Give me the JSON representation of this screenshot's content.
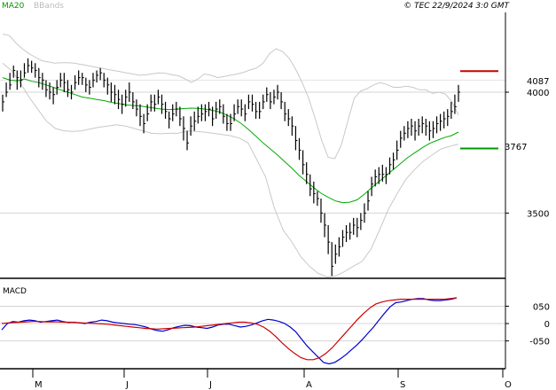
{
  "header": {
    "indicator_ma": "MA20",
    "indicator_bb": "BBands",
    "copyright": "© TEC 22/9/2024 3:0 GMT"
  },
  "colors": {
    "price": "#000000",
    "ma": "#00aa00",
    "bbands": "#c8c8c8",
    "macd": "#0000cc",
    "signal": "#cc0000",
    "resistance": "#cc0000",
    "support": "#009900",
    "grid": "#d4d4d4"
  },
  "chart_data": [
    {
      "type": "line",
      "name": "price-panel",
      "ylim": [
        3230,
        4330
      ],
      "yticks": [
        {
          "label": "4000",
          "value": 4000
        },
        {
          "label": "3500",
          "value": 3500
        }
      ],
      "xticks": [
        "M",
        "J",
        "J",
        "A",
        "S",
        "O"
      ],
      "levels": [
        {
          "label": "4087",
          "value": 4087,
          "role": "resistance"
        },
        {
          "label": "3767",
          "value": 3767,
          "role": "support"
        }
      ],
      "ohlc_close": [
        3935,
        4010,
        4050,
        4085,
        4040,
        4060,
        4100,
        4120,
        4105,
        4090,
        4060,
        4050,
        4020,
        4000,
        3980,
        4030,
        4060,
        4040,
        4010,
        4000,
        4040,
        4050,
        4060,
        4030,
        4020,
        4050,
        4070,
        4080,
        4060,
        4040,
        4000,
        3990,
        3970,
        3950,
        3980,
        4000,
        3960,
        3930,
        3900,
        3870,
        3930,
        3960,
        3950,
        3980,
        3950,
        3920,
        3890,
        3910,
        3930,
        3890,
        3850,
        3780,
        3860,
        3880,
        3900,
        3910,
        3920,
        3930,
        3890,
        3930,
        3940,
        3900,
        3870,
        3870,
        3910,
        3940,
        3930,
        3910,
        3960,
        3950,
        3920,
        3920,
        3960,
        3990,
        3960,
        3980,
        4000,
        3960,
        3910,
        3890,
        3860,
        3800,
        3760,
        3700,
        3660,
        3600,
        3580,
        3560,
        3500,
        3450,
        3380,
        3280,
        3330,
        3360,
        3400,
        3420,
        3420,
        3450,
        3440,
        3470,
        3500,
        3550,
        3620,
        3650,
        3660,
        3660,
        3660,
        3700,
        3720,
        3760,
        3810,
        3830,
        3850,
        3860,
        3840,
        3860,
        3870,
        3860,
        3840,
        3850,
        3870,
        3880,
        3890,
        3900,
        3920,
        3940,
        4000
      ],
      "ma20": [
        4060,
        4050,
        4047,
        4055,
        4045,
        4040,
        4030,
        4020,
        4010,
        4000,
        3990,
        3980,
        3975,
        3970,
        3965,
        3958,
        3953,
        3948,
        3945,
        3943,
        3938,
        3934,
        3930,
        3928,
        3930,
        3932,
        3934,
        3933,
        3930,
        3925,
        3918,
        3905,
        3890,
        3870,
        3845,
        3818,
        3790,
        3765,
        3740,
        3712,
        3685,
        3655,
        3630,
        3605,
        3582,
        3565,
        3550,
        3543,
        3545,
        3555,
        3578,
        3605,
        3630,
        3655,
        3680,
        3705,
        3730,
        3750,
        3770,
        3788,
        3800,
        3812,
        3820,
        3835
      ],
      "bb_upper": [
        4240,
        4235,
        4205,
        4180,
        4160,
        4145,
        4130,
        4125,
        4120,
        4122,
        4122,
        4120,
        4115,
        4110,
        4105,
        4100,
        4095,
        4090,
        4085,
        4080,
        4075,
        4070,
        4072,
        4076,
        4080,
        4078,
        4072,
        4068,
        4055,
        4040,
        4055,
        4075,
        4070,
        4060,
        4065,
        4070,
        4075,
        4082,
        4092,
        4100,
        4120,
        4160,
        4180,
        4168,
        4140,
        4095,
        4040,
        3975,
        3890,
        3800,
        3730,
        3725,
        3780,
        3880,
        3975,
        4005,
        4015,
        4030,
        4040,
        4032,
        4020,
        4020,
        4025,
        4020,
        4010,
        4010,
        3995,
        4000,
        3992,
        3960,
        3905
      ],
      "bb_lower": [
        4120,
        4090,
        4040,
        3980,
        3930,
        3880,
        3850,
        3840,
        3838,
        3840,
        3848,
        3855,
        3860,
        3865,
        3860,
        3850,
        3840,
        3830,
        3828,
        3830,
        3830,
        3840,
        3838,
        3835,
        3830,
        3825,
        3820,
        3810,
        3790,
        3720,
        3650,
        3520,
        3430,
        3380,
        3320,
        3280,
        3250,
        3236,
        3240,
        3258,
        3280,
        3300,
        3350,
        3430,
        3515,
        3580,
        3640,
        3680,
        3715,
        3740,
        3765,
        3776,
        3785
      ],
      "bars": [
        [
          3960,
          3990,
          3920
        ],
        [
          4000,
          4040,
          3980
        ],
        [
          4030,
          4080,
          4010
        ],
        [
          4090,
          4110,
          4060
        ],
        [
          4060,
          4090,
          4010
        ],
        [
          4050,
          4090,
          4020
        ],
        [
          4080,
          4120,
          4060
        ],
        [
          4110,
          4140,
          4080
        ],
        [
          4100,
          4130,
          4080
        ],
        [
          4090,
          4120,
          4060
        ],
        [
          4060,
          4100,
          4020
        ],
        [
          4050,
          4080,
          4010
        ],
        [
          4010,
          4050,
          3980
        ],
        [
          4000,
          4040,
          3970
        ],
        [
          3990,
          4020,
          3950
        ],
        [
          4020,
          4050,
          3990
        ],
        [
          4050,
          4080,
          4020
        ],
        [
          4040,
          4080,
          4000
        ],
        [
          4010,
          4050,
          3980
        ],
        [
          4000,
          4030,
          3970
        ],
        [
          4040,
          4070,
          4010
        ],
        [
          4060,
          4090,
          4030
        ],
        [
          4060,
          4080,
          4030
        ],
        [
          4030,
          4060,
          4000
        ],
        [
          4020,
          4050,
          3990
        ],
        [
          4050,
          4080,
          4020
        ],
        [
          4070,
          4090,
          4040
        ],
        [
          4080,
          4100,
          4050
        ],
        [
          4050,
          4080,
          4020
        ],
        [
          4030,
          4060,
          3990
        ],
        [
          4000,
          4040,
          3960
        ],
        [
          3990,
          4030,
          3950
        ],
        [
          3970,
          4010,
          3930
        ],
        [
          3950,
          3990,
          3910
        ],
        [
          3980,
          4010,
          3940
        ],
        [
          4000,
          4040,
          3960
        ],
        [
          3960,
          4000,
          3930
        ],
        [
          3930,
          3970,
          3900
        ],
        [
          3900,
          3950,
          3860
        ],
        [
          3870,
          3910,
          3830
        ],
        [
          3910,
          3950,
          3880
        ],
        [
          3960,
          3990,
          3920
        ],
        [
          3950,
          3990,
          3920
        ],
        [
          3980,
          4010,
          3950
        ],
        [
          3950,
          3990,
          3910
        ],
        [
          3920,
          3960,
          3890
        ],
        [
          3890,
          3920,
          3850
        ],
        [
          3910,
          3950,
          3880
        ],
        [
          3930,
          3960,
          3900
        ],
        [
          3890,
          3940,
          3860
        ],
        [
          3850,
          3900,
          3800
        ],
        [
          3790,
          3840,
          3760
        ],
        [
          3860,
          3900,
          3820
        ],
        [
          3880,
          3920,
          3840
        ],
        [
          3900,
          3940,
          3870
        ],
        [
          3910,
          3950,
          3880
        ],
        [
          3920,
          3950,
          3880
        ],
        [
          3930,
          3960,
          3900
        ],
        [
          3890,
          3940,
          3860
        ],
        [
          3930,
          3960,
          3890
        ],
        [
          3940,
          3970,
          3910
        ],
        [
          3900,
          3950,
          3870
        ],
        [
          3870,
          3910,
          3840
        ],
        [
          3870,
          3910,
          3840
        ],
        [
          3910,
          3950,
          3880
        ],
        [
          3940,
          3970,
          3910
        ],
        [
          3930,
          3970,
          3900
        ],
        [
          3910,
          3950,
          3880
        ],
        [
          3960,
          3990,
          3930
        ],
        [
          3950,
          3990,
          3920
        ],
        [
          3920,
          3960,
          3890
        ],
        [
          3920,
          3960,
          3890
        ],
        [
          3960,
          3990,
          3930
        ],
        [
          3990,
          4020,
          3960
        ],
        [
          3960,
          4000,
          3930
        ],
        [
          3980,
          4010,
          3950
        ],
        [
          4000,
          4030,
          3970
        ],
        [
          3960,
          4000,
          3930
        ],
        [
          3910,
          3960,
          3880
        ],
        [
          3890,
          3930,
          3860
        ],
        [
          3860,
          3900,
          3820
        ],
        [
          3800,
          3860,
          3760
        ],
        [
          3760,
          3810,
          3720
        ],
        [
          3700,
          3760,
          3660
        ],
        [
          3660,
          3710,
          3620
        ],
        [
          3600,
          3660,
          3570
        ],
        [
          3580,
          3630,
          3540
        ],
        [
          3560,
          3590,
          3530
        ],
        [
          3500,
          3560,
          3460
        ],
        [
          3450,
          3500,
          3400
        ],
        [
          3380,
          3450,
          3330
        ],
        [
          3280,
          3380,
          3240
        ],
        [
          3330,
          3370,
          3290
        ],
        [
          3360,
          3400,
          3320
        ],
        [
          3400,
          3430,
          3360
        ],
        [
          3420,
          3450,
          3380
        ],
        [
          3420,
          3460,
          3390
        ],
        [
          3450,
          3480,
          3410
        ],
        [
          3440,
          3480,
          3400
        ],
        [
          3470,
          3500,
          3430
        ],
        [
          3500,
          3540,
          3460
        ],
        [
          3550,
          3590,
          3510
        ],
        [
          3620,
          3650,
          3570
        ],
        [
          3650,
          3680,
          3610
        ],
        [
          3660,
          3690,
          3620
        ],
        [
          3660,
          3700,
          3630
        ],
        [
          3660,
          3690,
          3620
        ],
        [
          3700,
          3730,
          3660
        ],
        [
          3720,
          3750,
          3680
        ],
        [
          3760,
          3800,
          3720
        ],
        [
          3810,
          3840,
          3770
        ],
        [
          3830,
          3860,
          3800
        ],
        [
          3850,
          3880,
          3810
        ],
        [
          3860,
          3890,
          3820
        ],
        [
          3840,
          3880,
          3800
        ],
        [
          3860,
          3890,
          3820
        ],
        [
          3870,
          3900,
          3830
        ],
        [
          3860,
          3890,
          3820
        ],
        [
          3840,
          3880,
          3800
        ],
        [
          3850,
          3880,
          3810
        ],
        [
          3870,
          3900,
          3830
        ],
        [
          3880,
          3910,
          3840
        ],
        [
          3890,
          3920,
          3850
        ],
        [
          3900,
          3930,
          3860
        ],
        [
          3920,
          3960,
          3890
        ],
        [
          3940,
          3990,
          3910
        ],
        [
          4000,
          4030,
          3960
        ]
      ]
    },
    {
      "type": "line",
      "name": "MACD",
      "title": "MACD",
      "ylim": [
        -130,
        120
      ],
      "yticks": [
        {
          "label": "050",
          "value": 50
        },
        {
          "label": "0",
          "value": 0
        },
        {
          "label": "-050",
          "value": -50
        }
      ],
      "series": [
        {
          "role": "macd",
          "values": [
            -18,
            0,
            6,
            4,
            8,
            10,
            8,
            4,
            6,
            8,
            10,
            6,
            3,
            4,
            2,
            0,
            4,
            6,
            10,
            8,
            4,
            2,
            0,
            -2,
            -3,
            -6,
            -10,
            -16,
            -20,
            -22,
            -18,
            -12,
            -8,
            -5,
            -6,
            -10,
            -12,
            -14,
            -10,
            -4,
            -2,
            -2,
            -6,
            -10,
            -8,
            -4,
            2,
            8,
            12,
            10,
            6,
            0,
            -10,
            -24,
            -44,
            -64,
            -80,
            -96,
            -112,
            -116,
            -112,
            -102,
            -90,
            -76,
            -62,
            -46,
            -28,
            -10,
            10,
            30,
            48,
            60,
            62,
            66,
            70,
            72,
            72,
            68,
            66,
            66,
            68,
            70,
            74
          ]
        },
        {
          "role": "signal",
          "values": [
            0,
            2,
            3,
            4,
            5,
            6,
            6,
            5,
            5,
            5,
            4,
            4,
            3,
            2,
            1,
            0,
            -1,
            -2,
            -4,
            -6,
            -8,
            -10,
            -12,
            -14,
            -15,
            -16,
            -15,
            -14,
            -13,
            -12,
            -11,
            -10,
            -8,
            -6,
            -4,
            -2,
            0,
            2,
            4,
            4,
            2,
            -2,
            -10,
            -22,
            -38,
            -56,
            -72,
            -86,
            -98,
            -104,
            -104,
            -98,
            -86,
            -70,
            -50,
            -30,
            -10,
            10,
            28,
            44,
            56,
            62,
            66,
            68,
            70,
            70,
            70,
            70,
            70,
            70,
            70,
            70,
            72,
            74
          ]
        }
      ]
    }
  ]
}
